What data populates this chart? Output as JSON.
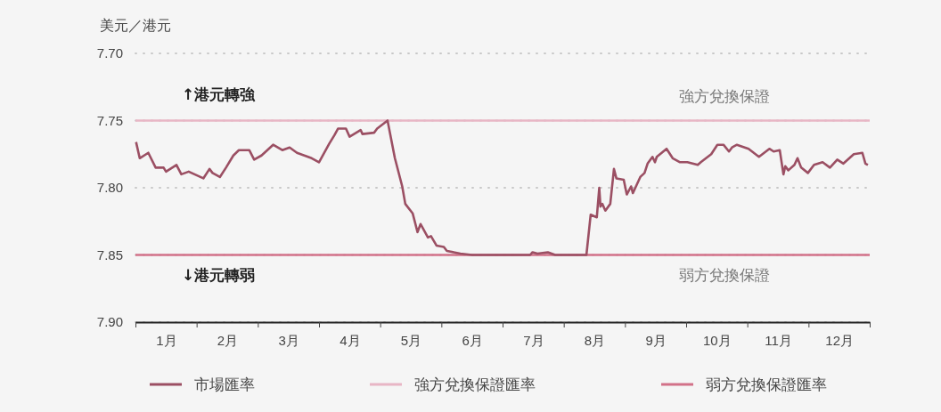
{
  "chart_data": {
    "type": "line",
    "ylabel": "美元／港元",
    "xlim": [
      0,
      12
    ],
    "xticks": [
      {
        "value": 0,
        "label": null
      },
      {
        "value": 0.5,
        "label": "1月"
      },
      {
        "value": 1,
        "label": null
      },
      {
        "value": 1.5,
        "label": "2月"
      },
      {
        "value": 2,
        "label": null
      },
      {
        "value": 2.5,
        "label": "3月"
      },
      {
        "value": 3,
        "label": null
      },
      {
        "value": 3.5,
        "label": "4月"
      },
      {
        "value": 4,
        "label": null
      },
      {
        "value": 4.5,
        "label": "5月"
      },
      {
        "value": 5,
        "label": null
      },
      {
        "value": 5.5,
        "label": "6月"
      },
      {
        "value": 6,
        "label": null
      },
      {
        "value": 6.5,
        "label": "7月"
      },
      {
        "value": 7,
        "label": null
      },
      {
        "value": 7.5,
        "label": "8月"
      },
      {
        "value": 8,
        "label": null
      },
      {
        "value": 8.5,
        "label": "9月"
      },
      {
        "value": 9,
        "label": null
      },
      {
        "value": 9.5,
        "label": "10月"
      },
      {
        "value": 10,
        "label": null
      },
      {
        "value": 10.5,
        "label": "11月"
      },
      {
        "value": 11,
        "label": null
      },
      {
        "value": 11.5,
        "label": "12月"
      },
      {
        "value": 12,
        "label": null
      }
    ],
    "ylim": [
      7.9,
      7.7
    ],
    "yticks": [
      {
        "value": 7.7,
        "label": "7.70"
      },
      {
        "value": 7.75,
        "label": "7.75"
      },
      {
        "value": 7.8,
        "label": "7.80"
      },
      {
        "value": 7.85,
        "label": "7.85"
      },
      {
        "value": 7.9,
        "label": "7.90"
      }
    ],
    "grid": "y",
    "legend": "bottom",
    "marker": "none",
    "line_style": "solid",
    "series": [
      {
        "name": "市場匯率",
        "color": "#9b4f63",
        "x": [
          0.01,
          0.07,
          0.21,
          0.33,
          0.46,
          0.5,
          0.67,
          0.75,
          0.87,
          1.11,
          1.21,
          1.26,
          1.38,
          1.48,
          1.6,
          1.69,
          1.86,
          1.94,
          2.06,
          2.25,
          2.4,
          2.52,
          2.64,
          2.88,
          3.0,
          3.17,
          3.25,
          3.31,
          3.44,
          3.5,
          3.68,
          3.71,
          3.9,
          3.95,
          4.12,
          4.24,
          4.36,
          4.41,
          4.53,
          4.61,
          4.66,
          4.78,
          4.83,
          4.92,
          5.04,
          5.09,
          5.31,
          5.5,
          6.45,
          6.49,
          6.57,
          6.74,
          6.86,
          7.37,
          7.44,
          7.54,
          7.58,
          7.6,
          7.63,
          7.68,
          7.76,
          7.82,
          7.86,
          7.98,
          8.03,
          8.1,
          8.13,
          8.25,
          8.32,
          8.37,
          8.45,
          8.49,
          8.52,
          8.68,
          8.78,
          8.9,
          9.02,
          9.19,
          9.24,
          9.41,
          9.51,
          9.61,
          9.7,
          9.75,
          9.83,
          10.02,
          10.19,
          10.36,
          10.43,
          10.53,
          10.59,
          10.62,
          10.67,
          10.77,
          10.82,
          10.88,
          10.99,
          11.09,
          11.23,
          11.35,
          11.47,
          11.57,
          11.74,
          11.88,
          11.93,
          11.97
        ],
        "values": [
          7.766,
          7.778,
          7.774,
          7.785,
          7.785,
          7.788,
          7.783,
          7.79,
          7.788,
          7.793,
          7.786,
          7.789,
          7.792,
          7.785,
          7.776,
          7.772,
          7.772,
          7.779,
          7.776,
          7.768,
          7.772,
          7.77,
          7.774,
          7.778,
          7.781,
          7.767,
          7.761,
          7.756,
          7.756,
          7.762,
          7.757,
          7.76,
          7.759,
          7.756,
          7.75,
          7.778,
          7.799,
          7.812,
          7.819,
          7.833,
          7.827,
          7.837,
          7.836,
          7.843,
          7.844,
          7.847,
          7.849,
          7.85,
          7.85,
          7.848,
          7.849,
          7.848,
          7.85,
          7.85,
          7.82,
          7.822,
          7.8,
          7.814,
          7.812,
          7.817,
          7.812,
          7.786,
          7.793,
          7.794,
          7.805,
          7.799,
          7.804,
          7.792,
          7.789,
          7.782,
          7.777,
          7.781,
          7.777,
          7.771,
          7.778,
          7.781,
          7.781,
          7.783,
          7.781,
          7.775,
          7.768,
          7.768,
          7.773,
          7.77,
          7.768,
          7.771,
          7.777,
          7.771,
          7.773,
          7.772,
          7.79,
          7.784,
          7.787,
          7.783,
          7.778,
          7.785,
          7.789,
          7.783,
          7.781,
          7.785,
          7.779,
          7.782,
          7.775,
          7.774,
          7.782,
          7.783
        ]
      },
      {
        "name": "強方兌換保證匯率",
        "color": "#e8b6c5",
        "x": [
          0,
          12
        ],
        "values": [
          7.75,
          7.75
        ]
      },
      {
        "name": "弱方兌換保證匯率",
        "color": "#d27188",
        "x": [
          0,
          12
        ],
        "values": [
          7.85,
          7.85
        ]
      }
    ],
    "annotations": [
      "↑港元轉強",
      "↓港元轉弱",
      "強方兌換保證",
      "弱方兌換保證"
    ]
  }
}
